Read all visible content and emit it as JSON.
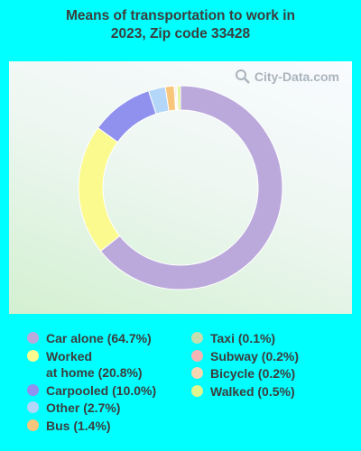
{
  "title_lines": [
    "Means of transportation to work in",
    "2023, Zip code 33428"
  ],
  "watermark": "City-Data.com",
  "chart_data": {
    "type": "pie",
    "categories": [
      "Car alone",
      "Worked at home",
      "Carpooled",
      "Other",
      "Bus",
      "Taxi",
      "Subway",
      "Bicycle",
      "Walked"
    ],
    "values": [
      64.7,
      20.8,
      10.0,
      2.7,
      1.4,
      0.1,
      0.2,
      0.2,
      0.5
    ],
    "colors": [
      "#bba9dc",
      "#fafa8f",
      "#9090ee",
      "#b4d6f8",
      "#f8c57a",
      "#c5deb0",
      "#f4b4b4",
      "#f6d7b3",
      "#def58e"
    ],
    "legend_labels": [
      "Car alone (64.7%)",
      "Worked\nat home (20.8%)",
      "Carpooled (10.0%)",
      "Other (2.7%)",
      "Bus (1.4%)",
      "Taxi (0.1%)",
      "Subway (0.2%)",
      "Bicycle (0.2%)",
      "Walked (0.5%)"
    ]
  }
}
